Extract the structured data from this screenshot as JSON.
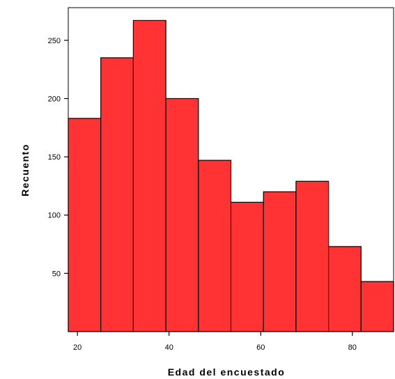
{
  "chart_data": {
    "type": "bar",
    "title": "",
    "xlabel": "Edad del encuestado",
    "ylabel": "Recuento",
    "bin_edges": [
      18,
      25.1,
      32.2,
      39.3,
      46.4,
      53.5,
      60.6,
      67.7,
      74.8,
      81.9,
      89
    ],
    "values": [
      183,
      235,
      267,
      200,
      147,
      111,
      120,
      129,
      73,
      43
    ],
    "xticks": [
      20,
      40,
      60,
      80
    ],
    "yticks": [
      50,
      100,
      150,
      200,
      250
    ],
    "xlim": [
      18,
      89
    ],
    "ylim": [
      0,
      278
    ],
    "bar_color": "#ff3333",
    "grid": false
  }
}
